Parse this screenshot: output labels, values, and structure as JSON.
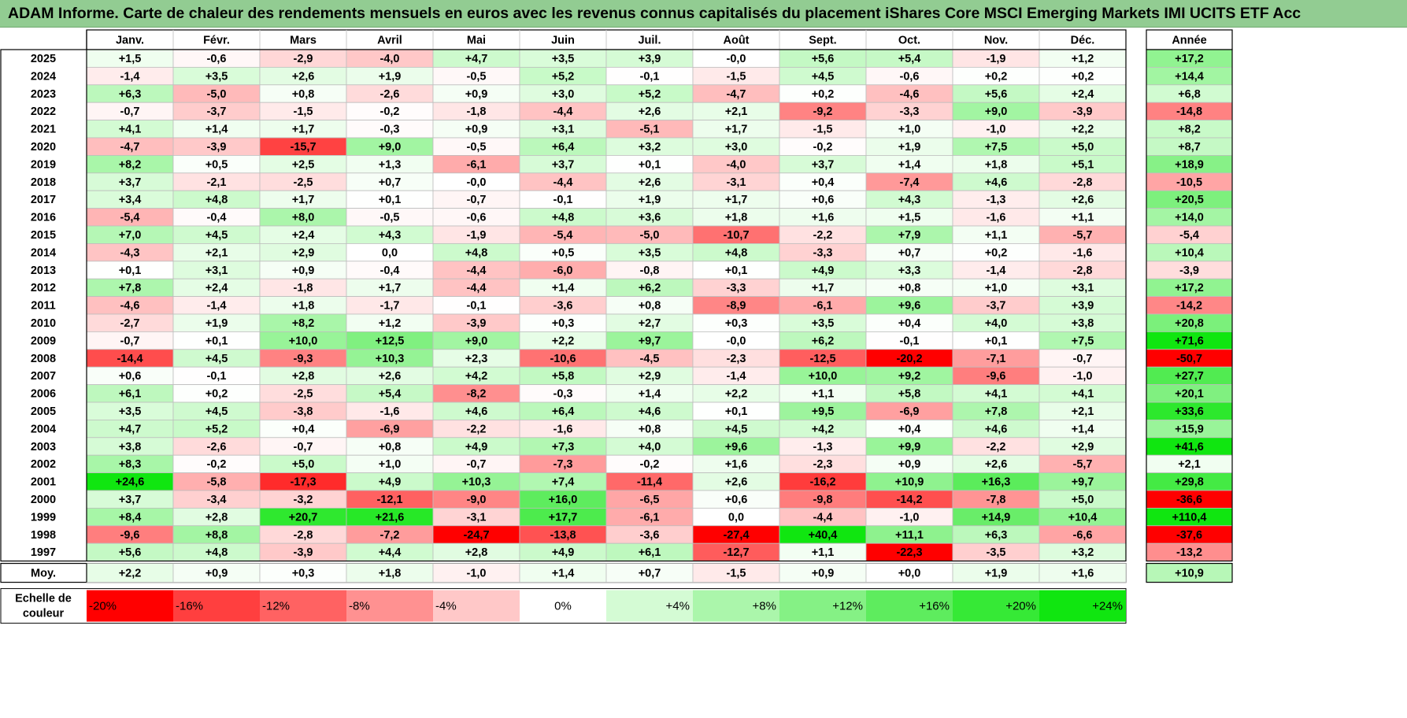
{
  "title": "ADAM Informe. Carte de chaleur des rendements mensuels en euros avec les revenus connus capitalisés du placement iShares Core MSCI Emerging Markets IMI UCITS ETF Acc",
  "chart_data": {
    "type": "heatmap",
    "months": [
      "Janv.",
      "Févr.",
      "Mars",
      "Avril",
      "Mai",
      "Juin",
      "Juil.",
      "Août",
      "Sept.",
      "Oct.",
      "Nov.",
      "Déc."
    ],
    "annual_header": "Année",
    "rows": [
      {
        "year": "2025",
        "values": [
          "+1,5",
          "-0,6",
          "-2,9",
          "-4,0",
          "+4,7",
          "+3,5",
          "+3,9",
          "-0,0",
          "+5,6",
          "+5,4",
          "-1,9",
          "+1,2"
        ],
        "annual": "+17,2"
      },
      {
        "year": "2024",
        "values": [
          "-1,4",
          "+3,5",
          "+2,6",
          "+1,9",
          "-0,5",
          "+5,2",
          "-0,1",
          "-1,5",
          "+4,5",
          "-0,6",
          "+0,2",
          "+0,2"
        ],
        "annual": "+14,4"
      },
      {
        "year": "2023",
        "values": [
          "+6,3",
          "-5,0",
          "+0,8",
          "-2,6",
          "+0,9",
          "+3,0",
          "+5,2",
          "-4,7",
          "+0,2",
          "-4,6",
          "+5,6",
          "+2,4"
        ],
        "annual": "+6,8"
      },
      {
        "year": "2022",
        "values": [
          "-0,7",
          "-3,7",
          "-1,5",
          "-0,2",
          "-1,8",
          "-4,4",
          "+2,6",
          "+2,1",
          "-9,2",
          "-3,3",
          "+9,0",
          "-3,9"
        ],
        "annual": "-14,8"
      },
      {
        "year": "2021",
        "values": [
          "+4,1",
          "+1,4",
          "+1,7",
          "-0,3",
          "+0,9",
          "+3,1",
          "-5,1",
          "+1,7",
          "-1,5",
          "+1,0",
          "-1,0",
          "+2,2"
        ],
        "annual": "+8,2"
      },
      {
        "year": "2020",
        "values": [
          "-4,7",
          "-3,9",
          "-15,7",
          "+9,0",
          "-0,5",
          "+6,4",
          "+3,2",
          "+3,0",
          "-0,2",
          "+1,9",
          "+7,5",
          "+5,0"
        ],
        "annual": "+8,7"
      },
      {
        "year": "2019",
        "values": [
          "+8,2",
          "+0,5",
          "+2,5",
          "+1,3",
          "-6,1",
          "+3,7",
          "+0,1",
          "-4,0",
          "+3,7",
          "+1,4",
          "+1,8",
          "+5,1"
        ],
        "annual": "+18,9"
      },
      {
        "year": "2018",
        "values": [
          "+3,7",
          "-2,1",
          "-2,5",
          "+0,7",
          "-0,0",
          "-4,4",
          "+2,6",
          "-3,1",
          "+0,4",
          "-7,4",
          "+4,6",
          "-2,8"
        ],
        "annual": "-10,5"
      },
      {
        "year": "2017",
        "values": [
          "+3,4",
          "+4,8",
          "+1,7",
          "+0,1",
          "-0,7",
          "-0,1",
          "+1,9",
          "+1,7",
          "+0,6",
          "+4,3",
          "-1,3",
          "+2,6"
        ],
        "annual": "+20,5"
      },
      {
        "year": "2016",
        "values": [
          "-5,4",
          "-0,4",
          "+8,0",
          "-0,5",
          "-0,6",
          "+4,8",
          "+3,6",
          "+1,8",
          "+1,6",
          "+1,5",
          "-1,6",
          "+1,1"
        ],
        "annual": "+14,0"
      },
      {
        "year": "2015",
        "values": [
          "+7,0",
          "+4,5",
          "+2,4",
          "+4,3",
          "-1,9",
          "-5,4",
          "-5,0",
          "-10,7",
          "-2,2",
          "+7,9",
          "+1,1",
          "-5,7"
        ],
        "annual": "-5,4"
      },
      {
        "year": "2014",
        "values": [
          "-4,3",
          "+2,1",
          "+2,9",
          "0,0",
          "+4,8",
          "+0,5",
          "+3,5",
          "+4,8",
          "-3,3",
          "+0,7",
          "+0,2",
          "-1,6"
        ],
        "annual": "+10,4"
      },
      {
        "year": "2013",
        "values": [
          "+0,1",
          "+3,1",
          "+0,9",
          "-0,4",
          "-4,4",
          "-6,0",
          "-0,8",
          "+0,1",
          "+4,9",
          "+3,3",
          "-1,4",
          "-2,8"
        ],
        "annual": "-3,9"
      },
      {
        "year": "2012",
        "values": [
          "+7,8",
          "+2,4",
          "-1,8",
          "+1,7",
          "-4,4",
          "+1,4",
          "+6,2",
          "-3,3",
          "+1,7",
          "+0,8",
          "+1,0",
          "+3,1"
        ],
        "annual": "+17,2"
      },
      {
        "year": "2011",
        "values": [
          "-4,6",
          "-1,4",
          "+1,8",
          "-1,7",
          "-0,1",
          "-3,6",
          "+0,8",
          "-8,9",
          "-6,1",
          "+9,6",
          "-3,7",
          "+3,9"
        ],
        "annual": "-14,2"
      },
      {
        "year": "2010",
        "values": [
          "-2,7",
          "+1,9",
          "+8,2",
          "+1,2",
          "-3,9",
          "+0,3",
          "+2,7",
          "+0,3",
          "+3,5",
          "+0,4",
          "+4,0",
          "+3,8"
        ],
        "annual": "+20,8"
      },
      {
        "year": "2009",
        "values": [
          "-0,7",
          "+0,1",
          "+10,0",
          "+12,5",
          "+9,0",
          "+2,2",
          "+9,7",
          "-0,0",
          "+6,2",
          "-0,1",
          "+0,1",
          "+7,5"
        ],
        "annual": "+71,6"
      },
      {
        "year": "2008",
        "values": [
          "-14,4",
          "+4,5",
          "-9,3",
          "+10,3",
          "+2,3",
          "-10,6",
          "-4,5",
          "-2,3",
          "-12,5",
          "-20,2",
          "-7,1",
          "-0,7"
        ],
        "annual": "-50,7"
      },
      {
        "year": "2007",
        "values": [
          "+0,6",
          "-0,1",
          "+2,8",
          "+2,6",
          "+4,2",
          "+5,8",
          "+2,9",
          "-1,4",
          "+10,0",
          "+9,2",
          "-9,6",
          "-1,0"
        ],
        "annual": "+27,7"
      },
      {
        "year": "2006",
        "values": [
          "+6,1",
          "+0,2",
          "-2,5",
          "+5,4",
          "-8,2",
          "-0,3",
          "+1,4",
          "+2,2",
          "+1,1",
          "+5,8",
          "+4,1",
          "+4,1"
        ],
        "annual": "+20,1"
      },
      {
        "year": "2005",
        "values": [
          "+3,5",
          "+4,5",
          "-3,8",
          "-1,6",
          "+4,6",
          "+6,4",
          "+4,6",
          "+0,1",
          "+9,5",
          "-6,9",
          "+7,8",
          "+2,1"
        ],
        "annual": "+33,6"
      },
      {
        "year": "2004",
        "values": [
          "+4,7",
          "+5,2",
          "+0,4",
          "-6,9",
          "-2,2",
          "-1,6",
          "+0,8",
          "+4,5",
          "+4,2",
          "+0,4",
          "+4,6",
          "+1,4"
        ],
        "annual": "+15,9"
      },
      {
        "year": "2003",
        "values": [
          "+3,8",
          "-2,6",
          "-0,7",
          "+0,8",
          "+4,9",
          "+7,3",
          "+4,0",
          "+9,6",
          "-1,3",
          "+9,9",
          "-2,2",
          "+2,9"
        ],
        "annual": "+41,6"
      },
      {
        "year": "2002",
        "values": [
          "+8,3",
          "-0,2",
          "+5,0",
          "+1,0",
          "-0,7",
          "-7,3",
          "-0,2",
          "+1,6",
          "-2,3",
          "+0,9",
          "+2,6",
          "-5,7"
        ],
        "annual": "+2,1"
      },
      {
        "year": "2001",
        "values": [
          "+24,6",
          "-5,8",
          "-17,3",
          "+4,9",
          "+10,3",
          "+7,4",
          "-11,4",
          "+2,6",
          "-16,2",
          "+10,9",
          "+16,3",
          "+9,7"
        ],
        "annual": "+29,8"
      },
      {
        "year": "2000",
        "values": [
          "+3,7",
          "-3,4",
          "-3,2",
          "-12,1",
          "-9,0",
          "+16,0",
          "-6,5",
          "+0,6",
          "-9,8",
          "-14,2",
          "-7,8",
          "+5,0"
        ],
        "annual": "-36,6"
      },
      {
        "year": "1999",
        "values": [
          "+8,4",
          "+2,8",
          "+20,7",
          "+21,6",
          "-3,1",
          "+17,7",
          "-6,1",
          "0,0",
          "-4,4",
          "-1,0",
          "+14,9",
          "+10,4"
        ],
        "annual": "+110,4"
      },
      {
        "year": "1998",
        "values": [
          "-9,6",
          "+8,8",
          "-2,8",
          "-7,2",
          "-24,7",
          "-13,8",
          "-3,6",
          "-27,4",
          "+40,4",
          "+11,1",
          "+6,3",
          "-6,6"
        ],
        "annual": "-37,6"
      },
      {
        "year": "1997",
        "values": [
          "+5,6",
          "+4,8",
          "-3,9",
          "+4,4",
          "+2,8",
          "+4,9",
          "+6,1",
          "-12,7",
          "+1,1",
          "-22,3",
          "-3,5",
          "+3,2"
        ],
        "annual": "-13,2"
      }
    ],
    "average": {
      "label": "Moy.",
      "values": [
        "+2,2",
        "+0,9",
        "+0,3",
        "+1,8",
        "-1,0",
        "+1,4",
        "+0,7",
        "-1,5",
        "+0,9",
        "+0,0",
        "+1,9",
        "+1,6"
      ],
      "annual": "+10,9"
    },
    "scale": {
      "label_line1": "Echelle de",
      "label_line2": "couleur",
      "items": [
        {
          "label": "-20%",
          "value": -20,
          "color": "#ff0000"
        },
        {
          "label": "-16%",
          "value": -16,
          "color": "#ff3f3f"
        },
        {
          "label": "-12%",
          "value": -12,
          "color": "#ff6262"
        },
        {
          "label": "-8%",
          "value": -8,
          "color": "#ff9191"
        },
        {
          "label": "-4%",
          "value": -4,
          "color": "#ffc8c8"
        },
        {
          "label": "0%",
          "value": 0,
          "color": "#ffffff"
        },
        {
          "label": "+4%",
          "value": 4,
          "color": "#d4fbd4"
        },
        {
          "label": "+8%",
          "value": 8,
          "color": "#abf6ab"
        },
        {
          "label": "+12%",
          "value": 12,
          "color": "#85f185"
        },
        {
          "label": "+16%",
          "value": 16,
          "color": "#5eec5e"
        },
        {
          "label": "+20%",
          "value": 20,
          "color": "#36e936"
        },
        {
          "label": "+24%",
          "value": 24,
          "color": "#10e610"
        }
      ]
    }
  }
}
